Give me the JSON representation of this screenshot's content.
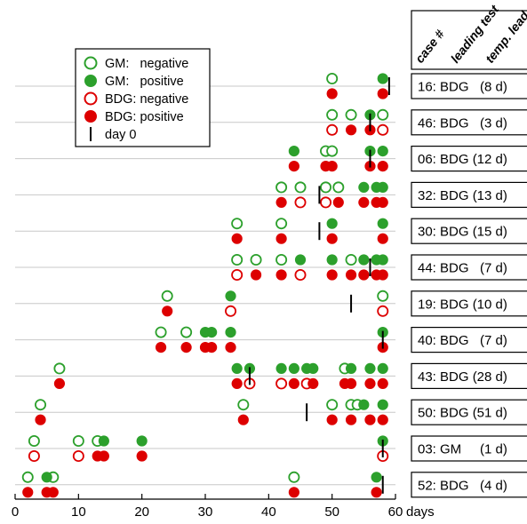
{
  "chart_data": {
    "type": "scatter",
    "xlim": [
      0,
      60
    ],
    "x_ticks": [
      0,
      10,
      20,
      30,
      40,
      50,
      60
    ],
    "x_unit": "days",
    "grid": "horizontal",
    "legend_position": "top-left",
    "colors": {
      "gm": "#2ca02c",
      "bdg": "#dd0000",
      "day0": "#000000"
    },
    "legend": [
      {
        "label": "GM:   negative",
        "kind": "gm",
        "filled": false
      },
      {
        "label": "GM:   positive",
        "kind": "gm",
        "filled": true
      },
      {
        "label": "BDG: negative",
        "kind": "bdg",
        "filled": false
      },
      {
        "label": "BDG: positive",
        "kind": "bdg",
        "filled": true
      },
      {
        "label": "day 0",
        "kind": "day0",
        "filled": true
      }
    ],
    "table_headers": [
      "case #",
      "leading test",
      "temp. lead"
    ],
    "cases": [
      {
        "label": "16: BDG   (8 d)",
        "day0": 59,
        "gm_neg": [
          50
        ],
        "gm_pos": [
          58
        ],
        "bdg_neg": [],
        "bdg_pos": [
          50,
          58
        ]
      },
      {
        "label": "46: BDG   (3 d)",
        "day0": 56,
        "gm_neg": [
          50,
          53,
          58
        ],
        "gm_pos": [
          56
        ],
        "bdg_neg": [
          50,
          58
        ],
        "bdg_pos": [
          53,
          56
        ]
      },
      {
        "label": "06: BDG (12 d)",
        "day0": 56,
        "gm_neg": [
          49,
          50
        ],
        "gm_pos": [
          44,
          56,
          58
        ],
        "bdg_neg": [],
        "bdg_pos": [
          44,
          49,
          50,
          56,
          58
        ]
      },
      {
        "label": "32: BDG (13 d)",
        "day0": 48,
        "gm_neg": [
          42,
          45,
          49,
          51
        ],
        "gm_pos": [
          55,
          57,
          58
        ],
        "bdg_neg": [
          45,
          49
        ],
        "bdg_pos": [
          42,
          51,
          55,
          57,
          58
        ]
      },
      {
        "label": "30: BDG (15 d)",
        "day0": 48,
        "gm_neg": [
          35,
          42
        ],
        "gm_pos": [
          50,
          58
        ],
        "bdg_neg": [],
        "bdg_pos": [
          35,
          42,
          50,
          58
        ]
      },
      {
        "label": "44: BDG   (7 d)",
        "day0": 56,
        "gm_neg": [
          35,
          38,
          42,
          53
        ],
        "gm_pos": [
          45,
          50,
          55,
          57,
          58
        ],
        "bdg_neg": [
          35,
          45
        ],
        "bdg_pos": [
          38,
          42,
          50,
          53,
          55,
          57,
          58
        ]
      },
      {
        "label": "19: BDG (10 d)",
        "day0": 53,
        "gm_neg": [
          24,
          58
        ],
        "gm_pos": [
          34
        ],
        "bdg_neg": [
          34,
          58
        ],
        "bdg_pos": [
          24
        ]
      },
      {
        "label": "40: BDG   (7 d)",
        "day0": 58,
        "gm_neg": [
          23,
          27
        ],
        "gm_pos": [
          30,
          31,
          34,
          58
        ],
        "bdg_neg": [],
        "bdg_pos": [
          23,
          27,
          30,
          31,
          34,
          58
        ]
      },
      {
        "label": "43: BDG (28 d)",
        "day0": 37,
        "gm_neg": [
          7,
          52
        ],
        "gm_pos": [
          35,
          37,
          42,
          44,
          46,
          47,
          53,
          56,
          58
        ],
        "bdg_neg": [
          37,
          42,
          46
        ],
        "bdg_pos": [
          7,
          35,
          44,
          47,
          52,
          53,
          56,
          58
        ]
      },
      {
        "label": "50: BDG (51 d)",
        "day0": 46,
        "gm_neg": [
          4,
          36,
          50,
          53,
          54
        ],
        "gm_pos": [
          55,
          58
        ],
        "bdg_neg": [],
        "bdg_pos": [
          4,
          36,
          50,
          53,
          56,
          58
        ]
      },
      {
        "label": "03: GM     (1 d)",
        "day0": 58,
        "gm_neg": [
          3,
          10,
          13
        ],
        "gm_pos": [
          14,
          20,
          58
        ],
        "bdg_neg": [
          3,
          10,
          58
        ],
        "bdg_pos": [
          13,
          14,
          20
        ]
      },
      {
        "label": "52: BDG   (4 d)",
        "day0": 58,
        "gm_neg": [
          2,
          6,
          44
        ],
        "gm_pos": [
          5,
          57
        ],
        "bdg_neg": [],
        "bdg_pos": [
          2,
          5,
          6,
          44,
          57
        ]
      }
    ]
  }
}
